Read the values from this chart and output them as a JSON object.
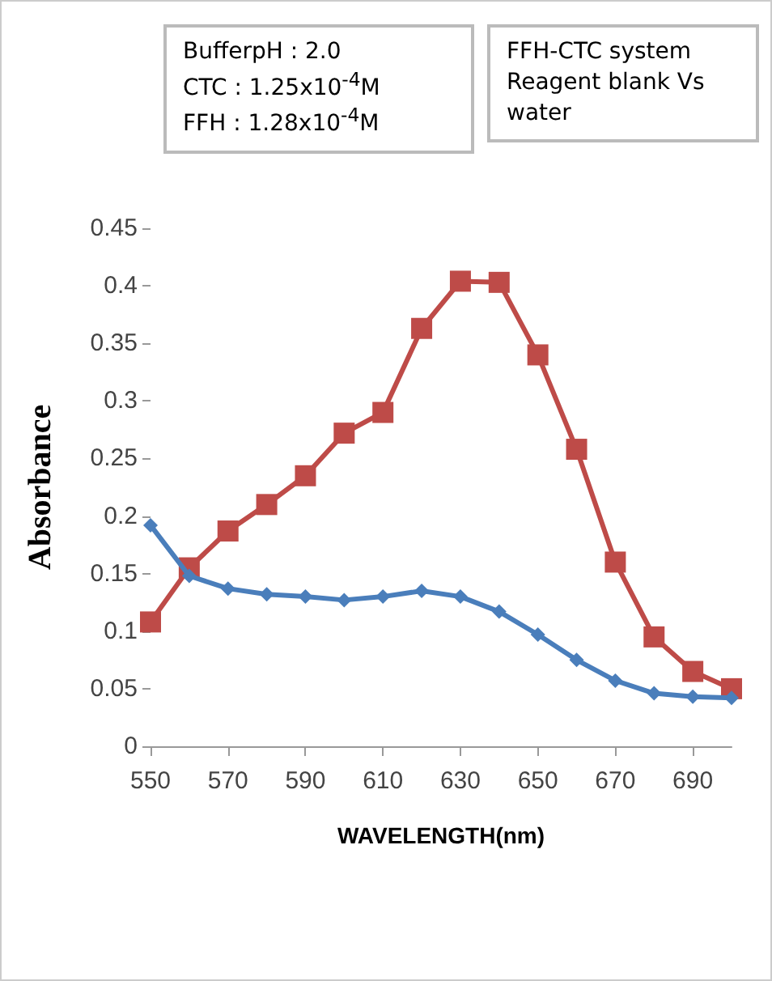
{
  "chart_data": {
    "type": "line",
    "annotations": [
      "BufferpH : 2.0\nCTC : 1.25x10$^{-4}$M\nFFH : 1.28x10$^{-4}$M",
      "FFH-CTC system Reagent blank Vs water"
    ],
    "xlabel": "WAVELENGTH(nm)",
    "ylabel": "Absorbance",
    "x": [
      550,
      560,
      570,
      580,
      590,
      600,
      610,
      620,
      630,
      640,
      650,
      660,
      670,
      680,
      690,
      700
    ],
    "series": [
      {
        "color": "#4a7ebb",
        "marker": "diamond",
        "values": [
          0.192,
          0.148,
          0.137,
          0.132,
          0.13,
          0.127,
          0.13,
          0.135,
          0.13,
          0.117,
          0.097,
          0.075,
          0.057,
          0.046,
          0.043,
          0.042
        ]
      },
      {
        "color": "#be4b48",
        "marker": "square",
        "values": [
          0.108,
          0.155,
          0.187,
          0.21,
          0.235,
          0.272,
          0.29,
          0.363,
          0.404,
          0.403,
          0.34,
          0.258,
          0.16,
          0.095,
          0.065,
          0.05
        ]
      }
    ],
    "xlim": [
      550,
      700
    ],
    "xticks": [
      550,
      570,
      590,
      610,
      630,
      650,
      670,
      690
    ],
    "ylim": [
      0,
      0.45
    ],
    "yticks": [
      0,
      0.05,
      0.1,
      0.15,
      0.2,
      0.25,
      0.3,
      0.35,
      0.4,
      0.45
    ],
    "grid": false,
    "line_style": "solid"
  }
}
